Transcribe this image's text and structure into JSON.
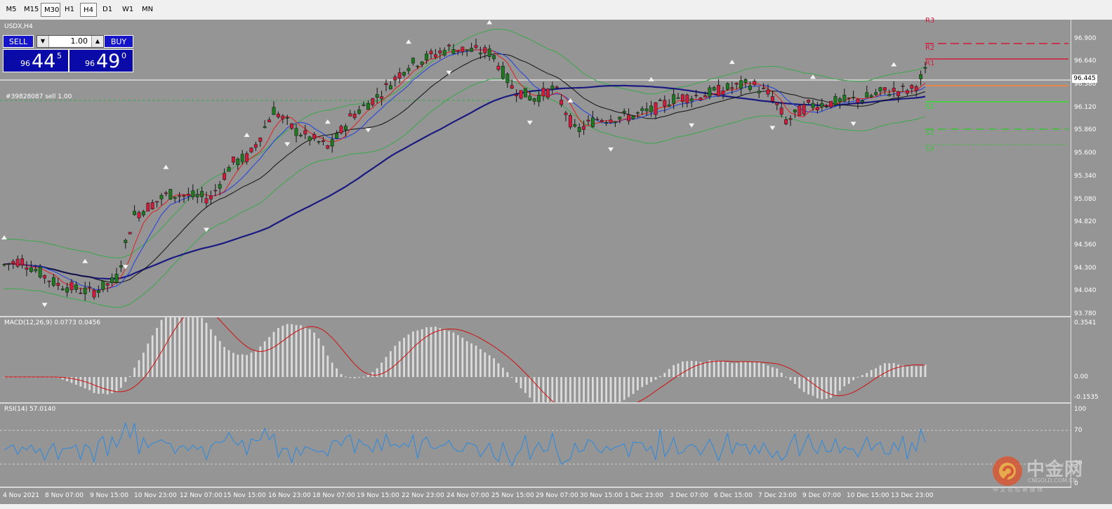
{
  "toolbar": {
    "timeframes": [
      "M5",
      "M15",
      "M30",
      "H1",
      "H4",
      "D1",
      "W1",
      "MN"
    ],
    "active": "H4"
  },
  "chart": {
    "symbol_label": "USDX,H4",
    "order_label": "#39828087 sell 1.00",
    "current_price": "96.445",
    "levels": {
      "r3": "R3",
      "r2": "R2",
      "r1": "R1",
      "s1": "S1",
      "s2": "S2",
      "s3": "S3"
    }
  },
  "trade_panel": {
    "sell_label": "SELL",
    "buy_label": "BUY",
    "lot": "1.00",
    "sell_prefix": "96",
    "sell_big": "44",
    "sell_sup": "5",
    "buy_prefix": "96",
    "buy_big": "49",
    "buy_sup": "0"
  },
  "price_axis": [
    "96.900",
    "96.640",
    "96.380",
    "96.120",
    "95.860",
    "95.600",
    "95.340",
    "95.080",
    "94.820",
    "94.560",
    "94.300",
    "94.040",
    "93.780"
  ],
  "macd": {
    "label": "MACD(12,26,9) 0.0773 0.0456",
    "axis": [
      "0.3541",
      "0.00",
      "-0.1535"
    ]
  },
  "rsi": {
    "label": "RSI(14) 57.0140",
    "axis": [
      "100",
      "70",
      "30",
      "0"
    ]
  },
  "time_axis": [
    "4 Nov 2021",
    "8 Nov 07:00",
    "9 Nov 15:00",
    "10 Nov 23:00",
    "12 Nov 07:00",
    "15 Nov 15:00",
    "16 Nov 23:00",
    "18 Nov 07:00",
    "19 Nov 15:00",
    "22 Nov 23:00",
    "24 Nov 07:00",
    "25 Nov 15:00",
    "29 Nov 07:00",
    "30 Nov 15:00",
    "1 Dec 23:00",
    "3 Dec 07:00",
    "6 Dec 15:00",
    "7 Dec 23:00",
    "9 Dec 07:00",
    "10 Dec 15:00",
    "13 Dec 23:00"
  ],
  "watermark": {
    "brand": "中金网",
    "domain": "CNGOLD.COM.CN",
    "tagline": "中 文 论 坛 新 媒 体"
  },
  "colors": {
    "bg": "#959595",
    "up": "#1e7a1e",
    "down": "#d01c3a",
    "ma_slow": "#1a1a80",
    "ma_mid": "#111111",
    "ma_fast_red": "#e02020",
    "ma_fast_blue": "#2040e0",
    "bands": "#3aa84a",
    "rsi": "#2a8ae0",
    "macd_signal": "#d01010"
  }
}
